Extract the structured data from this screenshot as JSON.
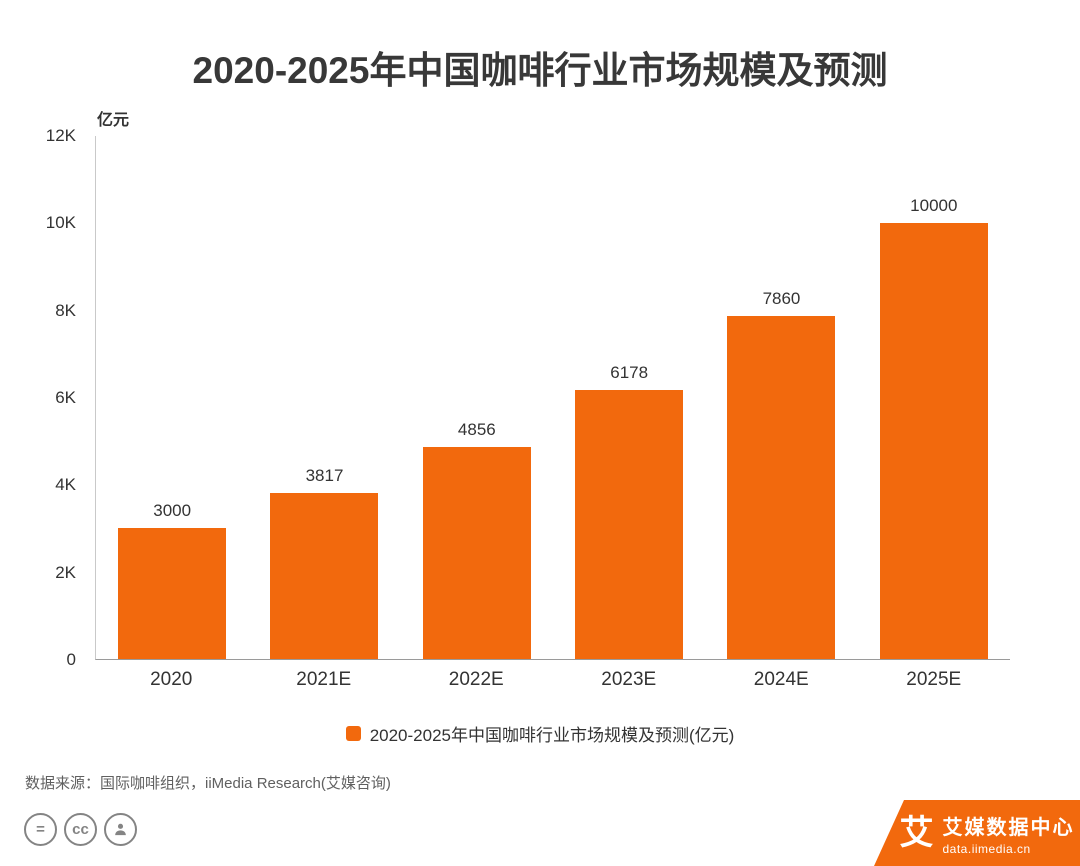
{
  "page": {
    "title": "2020-2025年中国咖啡行业市场规模及预测"
  },
  "chart_data": {
    "type": "bar",
    "title": "2020-2025年中国咖啡行业市场规模及预测",
    "unit_label": "亿元",
    "categories": [
      "2020",
      "2021E",
      "2022E",
      "2023E",
      "2024E",
      "2025E"
    ],
    "values": [
      3000,
      3817,
      4856,
      6178,
      7860,
      10000
    ],
    "ylim": [
      0,
      12000
    ],
    "yticks": [
      "12K",
      "10K",
      "8K",
      "6K",
      "4K",
      "2K",
      "0"
    ],
    "grid": false,
    "legend_position": "bottom",
    "legend_label": "2020-2025年中国咖啡行业市场规模及预测(亿元)",
    "bar_color": "#f2690d"
  },
  "footer": {
    "source": "数据来源：国际咖啡组织，iiMedia Research(艾媒咨询)",
    "icon_equals": "=",
    "icon_cc": "cc"
  },
  "brand": {
    "logo_glyph": "艾",
    "name": "艾媒数据中心",
    "url": "data.iimedia.cn",
    "accent_color": "#f2690d"
  }
}
